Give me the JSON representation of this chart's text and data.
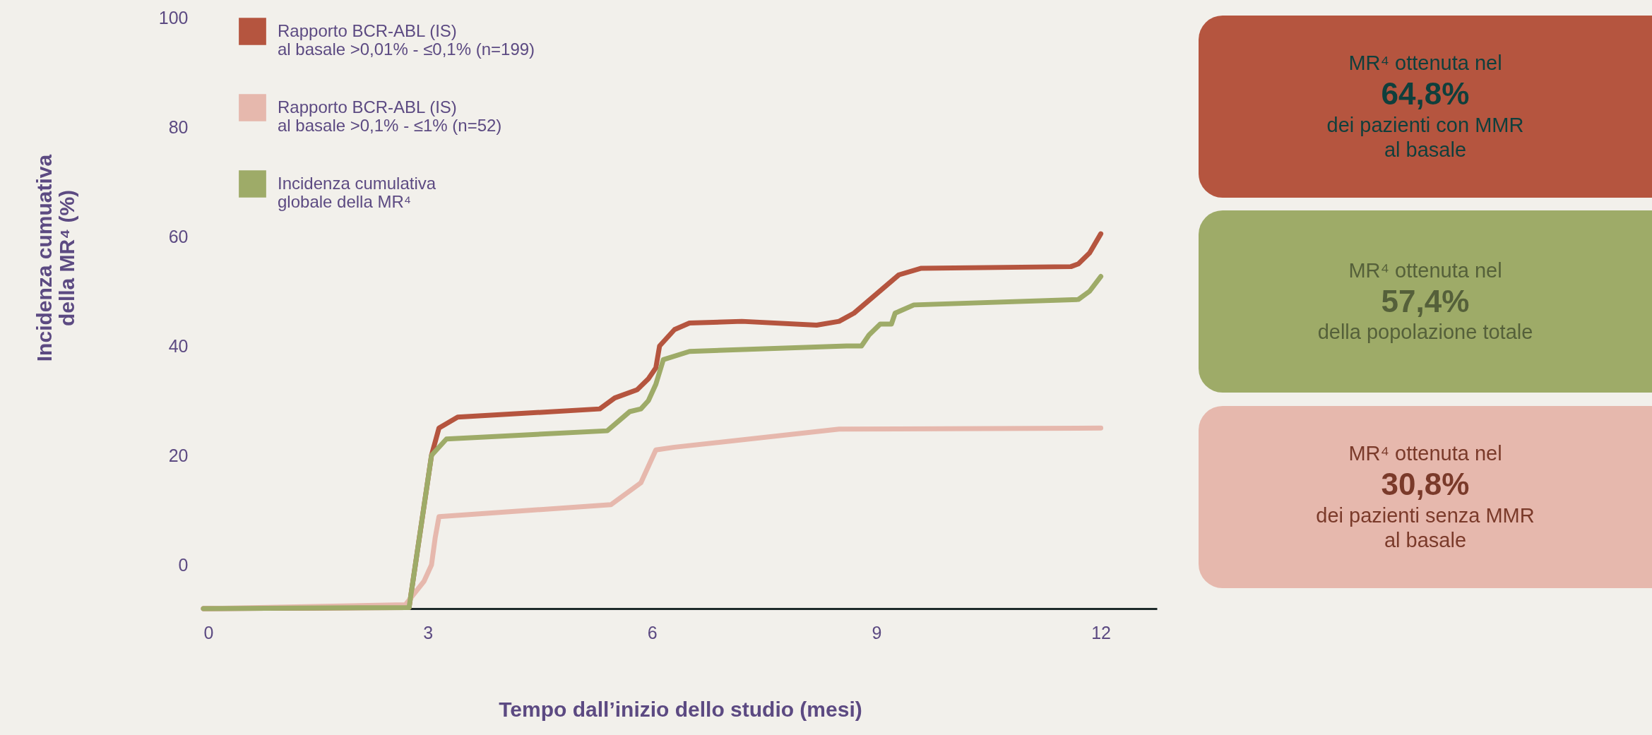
{
  "chart_data": {
    "type": "line",
    "xlabel": "Tempo dall’inizio dello studio (mesi)",
    "ylabel": "Incidenza cumuativa\ndella MR⁴ (%)",
    "xlim": [
      0,
      12.75
    ],
    "xticks": [
      0,
      3,
      6,
      9,
      12
    ],
    "ylim": [
      -8,
      100
    ],
    "yticks": [
      0,
      20,
      40,
      60,
      80,
      100
    ],
    "grid": false,
    "legend": "top left",
    "line_style": "solid",
    "marker": "none",
    "series": [
      {
        "name": "Rapporto BCR-ABL (IS)\nal basale >0,01% - ≤0,1% (n=199)",
        "color": "#b5553f",
        "x": [
          0,
          2.75,
          3.05,
          3.15,
          3.4,
          5.3,
          5.5,
          5.8,
          5.95,
          6.05,
          6.1,
          6.3,
          6.5,
          7.2,
          8.2,
          8.5,
          8.7,
          9.3,
          9.6,
          11.6,
          11.7,
          11.85,
          12
        ],
        "values": [
          -8,
          -7.8,
          20,
          25,
          27,
          28.5,
          30.5,
          32,
          34,
          36,
          40,
          43,
          44.2,
          44.5,
          43.8,
          44.5,
          46,
          53,
          54.2,
          54.5,
          55,
          57,
          60.5
        ]
      },
      {
        "name": "Rapporto BCR-ABL (IS)\nal basale >0,1% - ≤1% (n=52)",
        "color": "#e6b8ad",
        "x": [
          0,
          2.7,
          2.95,
          3.05,
          3.1,
          3.15,
          5.45,
          5.85,
          6.05,
          6.3,
          8.5,
          12
        ],
        "values": [
          -8,
          -7.3,
          -3,
          0,
          5,
          8.8,
          11,
          15,
          21,
          21.5,
          24.8,
          25
        ]
      },
      {
        "name": "Incidenza cumulativa\nglobale della MR⁴",
        "color": "#9eab68",
        "x": [
          0,
          2.75,
          3.05,
          3.25,
          5.4,
          5.7,
          5.85,
          5.95,
          6.05,
          6.15,
          6.5,
          8.6,
          8.8,
          8.9,
          9.05,
          9.2,
          9.25,
          9.5,
          11.7,
          11.85,
          12
        ],
        "values": [
          -8,
          -7.8,
          20,
          23,
          24.5,
          28,
          28.5,
          30,
          33,
          37.5,
          39,
          40,
          40,
          42,
          44,
          44,
          46,
          47.5,
          48.5,
          50,
          52.7
        ]
      }
    ],
    "annotations": [
      "MR⁴ ottenuta nel\n64,8%\ndei pazienti con MMR\nal basale",
      "MR⁴ ottenuta nel\n57,4%\ndella popolazione totale",
      "MR⁴ ottenuta nel\n30,8%\ndei pazienti senza MMR\nal basale"
    ]
  }
}
